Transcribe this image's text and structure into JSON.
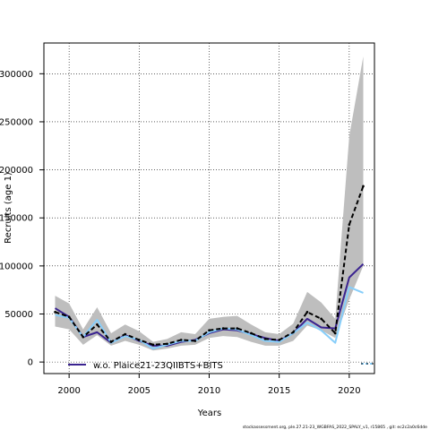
{
  "chart_data": {
    "type": "line",
    "title": "",
    "xlabel": "Years",
    "ylabel": "Recruits (age 1)",
    "xlim": [
      1998.2,
      2021.8
    ],
    "ylim": [
      -12000,
      332000
    ],
    "grid": true,
    "x_ticks": [
      2000,
      2005,
      2010,
      2015,
      2020
    ],
    "x_tick_labels": [
      "2000",
      "2005",
      "2010",
      "2015",
      "2020"
    ],
    "y_ticks": [
      0,
      50000,
      100000,
      150000,
      200000,
      250000,
      300000
    ],
    "y_tick_labels": [
      "0",
      "50000",
      "100000",
      "150000",
      "200000",
      "250000",
      "300000"
    ],
    "x": [
      1999,
      2000,
      2001,
      2002,
      2003,
      2004,
      2005,
      2006,
      2007,
      2008,
      2009,
      2010,
      2011,
      2012,
      2013,
      2014,
      2015,
      2016,
      2017,
      2018,
      2019,
      2020,
      2021
    ],
    "band": {
      "color": "#bebebe",
      "lower": [
        37000,
        34000,
        18000,
        28000,
        17000,
        22000,
        18000,
        12000,
        14000,
        17000,
        18000,
        25000,
        27000,
        26000,
        21000,
        17000,
        17000,
        22000,
        38000,
        33000,
        25000,
        65000,
        100000
      ],
      "upper": [
        69000,
        61000,
        34000,
        57000,
        30000,
        39000,
        32000,
        21000,
        24000,
        31000,
        29000,
        45000,
        47000,
        48000,
        39000,
        31000,
        29000,
        40000,
        73000,
        62000,
        45000,
        235000,
        318000
      ]
    },
    "series": [
      {
        "name": "w.o. Plaice21-23QIIBTS+BITS",
        "color": "#3a2390",
        "style": "solid",
        "values": [
          56000,
          47000,
          26000,
          31000,
          20000,
          28000,
          22000,
          17000,
          17000,
          21000,
          23000,
          30000,
          34000,
          33000,
          29000,
          25000,
          22000,
          30000,
          45000,
          36000,
          35000,
          88000,
          102000
        ]
      },
      {
        "color": "#87cefa",
        "style": "solid",
        "values": [
          49000,
          46000,
          26000,
          44000,
          20000,
          27000,
          23000,
          14000,
          18000,
          22000,
          22000,
          31000,
          35000,
          34000,
          28000,
          22000,
          21000,
          30000,
          41000,
          33000,
          20000,
          78000,
          72000
        ]
      },
      {
        "color": "#000000",
        "style": "dashed",
        "values": [
          52000,
          47000,
          26000,
          39000,
          21000,
          29000,
          23000,
          18000,
          19000,
          23000,
          22000,
          33000,
          35000,
          35000,
          30000,
          24000,
          23000,
          31000,
          52000,
          45000,
          30000,
          143000,
          183000
        ]
      }
    ],
    "legend_position": "bottom-left",
    "right_marker_color": "#87cefa"
  },
  "footer": {
    "text": "stockassessment.org,  ple.27.21-23_WGBFAS_2022_SPALY_v1,  r15865 ,  git: ec2c2a0c6dde"
  }
}
